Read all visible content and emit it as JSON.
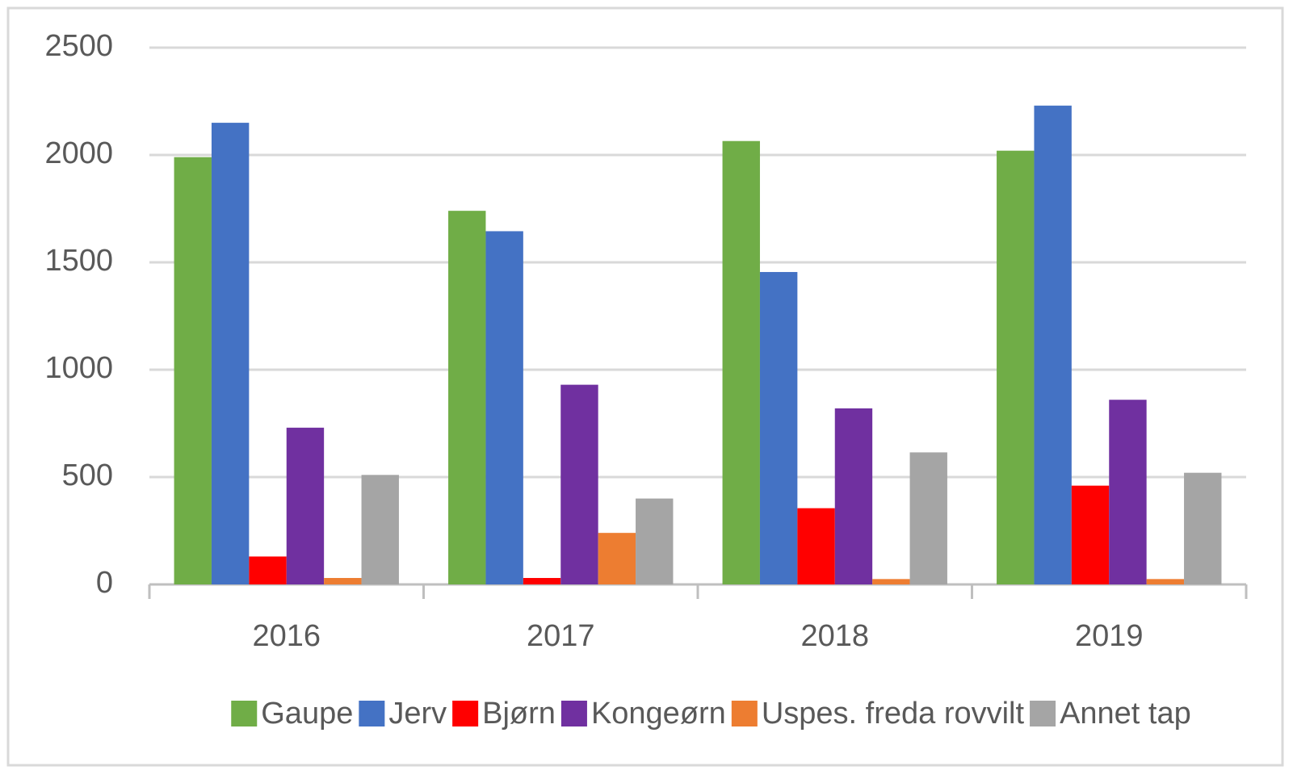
{
  "chart_data": {
    "type": "bar",
    "categories": [
      "2016",
      "2017",
      "2018",
      "2019"
    ],
    "series": [
      {
        "name": "Gaupe",
        "color": "#70ad47",
        "values": [
          1990,
          1740,
          2065,
          2020
        ]
      },
      {
        "name": "Jerv",
        "color": "#4472c4",
        "values": [
          2150,
          1645,
          1455,
          2230
        ]
      },
      {
        "name": "Bjørn",
        "color": "#ff0000",
        "values": [
          130,
          30,
          355,
          460
        ]
      },
      {
        "name": "Kongeørn",
        "color": "#7030a0",
        "values": [
          730,
          930,
          820,
          860
        ]
      },
      {
        "name": "Uspes. freda rovvilt",
        "color": "#ed7d31",
        "values": [
          30,
          240,
          25,
          25
        ]
      },
      {
        "name": "Annet tap",
        "color": "#a5a5a5",
        "values": [
          510,
          400,
          615,
          520
        ]
      }
    ],
    "ylim": [
      0,
      2500
    ],
    "yticks": [
      0,
      500,
      1000,
      1500,
      2000,
      2500
    ],
    "grid": true,
    "legend": "bottom"
  }
}
